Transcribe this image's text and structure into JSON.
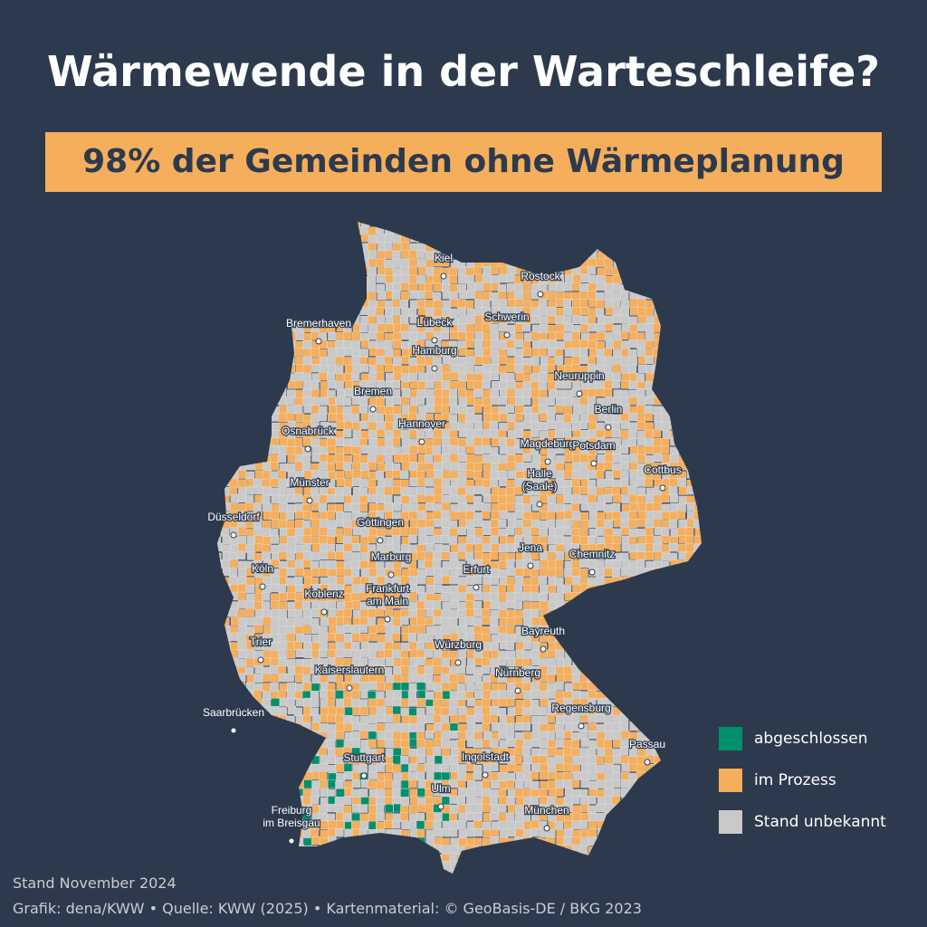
{
  "title": "Wärmewende in der Warteschleife?",
  "subtitle": "98% der Gemeinden ohne Wärmeplanung",
  "cities": [
    [
      "Kiel"
    ],
    [
      "Rostock"
    ],
    [
      "Bremerhaven"
    ],
    [
      "Lübeck"
    ],
    [
      "Schwerin"
    ],
    [
      "Hamburg"
    ],
    [
      "Bremen"
    ],
    [
      "Neuruppin"
    ],
    [
      "Berlin"
    ],
    [
      "Osnabrück"
    ],
    [
      "Hannover"
    ],
    [
      "Magdeburg"
    ],
    [
      "Potsdam"
    ],
    [
      "Münster"
    ],
    [
      "Cottbus"
    ],
    [
      "Halle",
      "(Saale)"
    ],
    [
      "Düsseldorf"
    ],
    [
      "Göttingen"
    ],
    [
      "Jena"
    ],
    [
      "Chemnitz"
    ],
    [
      "Marburg"
    ],
    [
      "Erfurt"
    ],
    [
      "Köln"
    ],
    [
      "Koblenz"
    ],
    [
      "Frankfurt",
      "am Main"
    ],
    [
      "Bayreuth"
    ],
    [
      "Trier"
    ],
    [
      "Würzburg"
    ],
    [
      "Kaiserslautern"
    ],
    [
      "Nürnberg"
    ],
    [
      "Saarbrücken"
    ],
    [
      "Regensburg"
    ],
    [
      "Stuttgart"
    ],
    [
      "Ingolstadt"
    ],
    [
      "Passau"
    ],
    [
      "Ulm"
    ],
    [
      "München"
    ],
    [
      "Freiburg",
      "im Breisgau"
    ]
  ],
  "legend": [
    {
      "name": "abgeschlossen",
      "color": "#00906b"
    },
    {
      "name": "im Prozess",
      "color": "#f5ae5c"
    },
    {
      "name": "Stand unbekannt",
      "color": "#c9c9c9"
    }
  ],
  "footer": [
    "Stand November 2024",
    "Grafik: dena/KWW • Quelle: KWW (2025) • Kartenmaterial: © GeoBasis-DE / BKG 2023"
  ]
}
